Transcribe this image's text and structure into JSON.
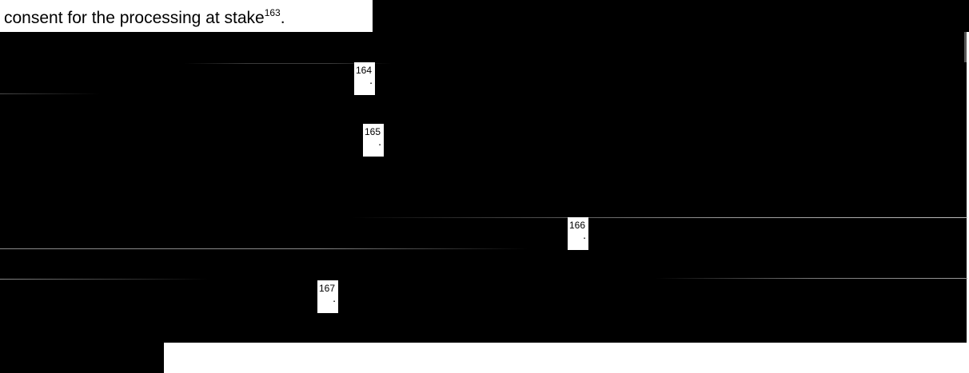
{
  "document": {
    "first_line": {
      "text": "consent for the processing at stake",
      "footnote": "163",
      "trailing": "."
    },
    "redacted_footnotes": [
      {
        "number": "164",
        "dot": "."
      },
      {
        "number": "165",
        "dot": "."
      },
      {
        "number": "166",
        "dot": "."
      },
      {
        "number": "167",
        "dot": "."
      }
    ]
  },
  "colors": {
    "redaction": "#000000",
    "page": "#ffffff",
    "hairline": "#7f7f7f"
  }
}
